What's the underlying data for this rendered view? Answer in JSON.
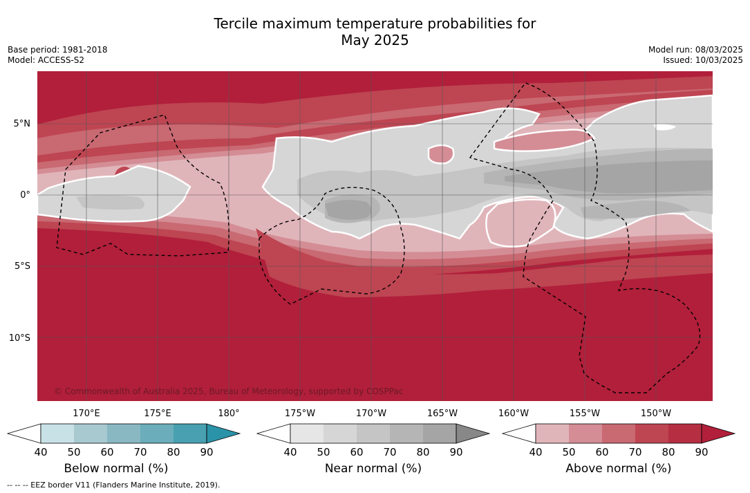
{
  "title_line1": "Tercile maximum temperature probabilities for",
  "title_line2": "May 2025",
  "meta_left": [
    "Base period: 1981-2018",
    "Model: ACCESS-S2"
  ],
  "meta_right": [
    "Model run: 08/03/2025",
    "Issued: 10/03/2025"
  ],
  "lat_labels": [
    "5°N",
    "0°",
    "5°S",
    "10°S"
  ],
  "lon_labels": [
    "170°E",
    "175°E",
    "180°",
    "175°W",
    "170°W",
    "165°W",
    "160°W",
    "155°W",
    "150°W"
  ],
  "copyright": "© Commonwealth of Australia 2025, Bureau of Meteorology, supported by COSPPac",
  "colors": {
    "above": [
      "#ffffff",
      "#e0b5ba",
      "#d48d95",
      "#c96972",
      "#be4552",
      "#b52e42",
      "#b11f3a"
    ],
    "near": [
      "#ffffff",
      "#e6e6e6",
      "#d6d6d6",
      "#c5c5c5",
      "#b5b5b5",
      "#a5a5a5",
      "#888888"
    ],
    "below": [
      "#ffffff",
      "#c8e1e7",
      "#a8c9d0",
      "#89b8c3",
      "#6badba",
      "#48a0b0",
      "#2b93a8"
    ]
  },
  "colorbars": [
    {
      "key": "below",
      "title": "Below normal (%)",
      "ticks": [
        "40",
        "50",
        "60",
        "70",
        "80",
        "90"
      ]
    },
    {
      "key": "near",
      "title": "Near normal (%)",
      "ticks": [
        "40",
        "50",
        "60",
        "70",
        "80",
        "90"
      ]
    },
    {
      "key": "above",
      "title": "Above normal (%)",
      "ticks": [
        "40",
        "50",
        "60",
        "70",
        "80",
        "90"
      ]
    }
  ],
  "footnote": "--  --  -- EEZ border V11 (Flanders Marine Institute, 2019)."
}
